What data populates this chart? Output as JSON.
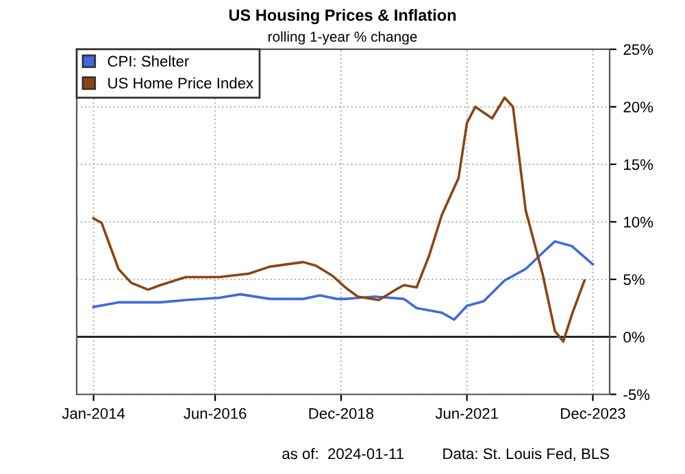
{
  "chart_data": {
    "type": "line",
    "title": "US Housing Prices & Inflation",
    "subtitle": "rolling 1-year % change",
    "annotations": [
      "as of:  2024-01-11",
      "Data: St. Louis Fed, BLS"
    ],
    "xlim": [
      "2013-09",
      "2024-04"
    ],
    "ylim": [
      -5,
      25
    ],
    "xticks": [
      {
        "value": "2014-01",
        "label": "Jan-2014"
      },
      {
        "value": "2016-06",
        "label": "Jun-2016"
      },
      {
        "value": "2018-12",
        "label": "Dec-2018"
      },
      {
        "value": "2021-06",
        "label": "Jun-2021"
      },
      {
        "value": "2023-12",
        "label": "Dec-2023"
      }
    ],
    "yticks": [
      {
        "value": -5,
        "label": "-5%"
      },
      {
        "value": 0,
        "label": "0%"
      },
      {
        "value": 5,
        "label": "5%"
      },
      {
        "value": 10,
        "label": "10%"
      },
      {
        "value": 15,
        "label": "15%"
      },
      {
        "value": 20,
        "label": "20%"
      },
      {
        "value": 25,
        "label": "25%"
      }
    ],
    "grid": true,
    "legend": "top left",
    "marker": "none",
    "line_style": "solid",
    "ref_lines": [
      {
        "axis": "y",
        "value": 0,
        "color": "#000000"
      }
    ],
    "series": [
      {
        "name": "CPI: Shelter",
        "color": "#4169e1",
        "x": [
          "2014-01",
          "2014-07",
          "2015-05",
          "2015-11",
          "2016-07",
          "2016-12",
          "2017-07",
          "2018-03",
          "2018-07",
          "2018-11",
          "2019-01",
          "2019-08",
          "2020-03",
          "2020-06",
          "2020-12",
          "2021-03",
          "2021-06",
          "2021-10",
          "2022-03",
          "2022-08",
          "2022-12",
          "2023-03",
          "2023-07",
          "2023-12"
        ],
        "values": [
          2.6,
          3.0,
          3.0,
          3.2,
          3.4,
          3.7,
          3.3,
          3.3,
          3.6,
          3.3,
          3.3,
          3.5,
          3.3,
          2.5,
          2.1,
          1.5,
          2.7,
          3.1,
          4.9,
          5.9,
          7.3,
          8.3,
          7.9,
          6.3
        ]
      },
      {
        "name": "US Home Price Index",
        "color": "#8b4513",
        "x": [
          "2014-01",
          "2014-03",
          "2014-05",
          "2014-07",
          "2014-10",
          "2015-02",
          "2015-05",
          "2015-11",
          "2016-07",
          "2017-02",
          "2017-07",
          "2018-03",
          "2018-06",
          "2018-10",
          "2019-01",
          "2019-04",
          "2019-09",
          "2020-01",
          "2020-03",
          "2020-06",
          "2020-09",
          "2020-12",
          "2021-04",
          "2021-06",
          "2021-08",
          "2021-12",
          "2022-03",
          "2022-05",
          "2022-08",
          "2022-12",
          "2023-03",
          "2023-05",
          "2023-07",
          "2023-10"
        ],
        "values": [
          10.3,
          9.9,
          7.9,
          5.9,
          4.7,
          4.1,
          4.5,
          5.2,
          5.2,
          5.5,
          6.1,
          6.5,
          6.2,
          5.3,
          4.3,
          3.5,
          3.2,
          4.1,
          4.5,
          4.3,
          7.1,
          10.6,
          13.8,
          18.6,
          20.0,
          19.0,
          20.8,
          20.0,
          11.0,
          5.5,
          0.5,
          -0.4,
          1.9,
          4.9
        ]
      }
    ]
  }
}
